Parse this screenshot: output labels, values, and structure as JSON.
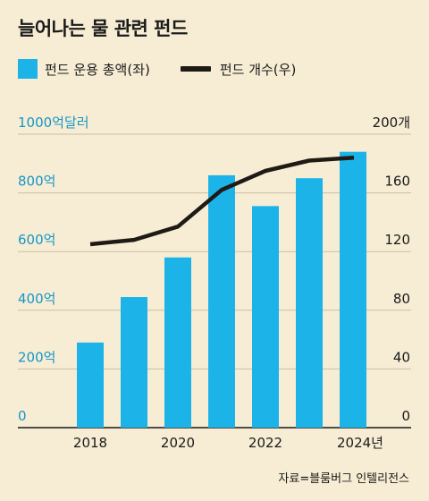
{
  "title": "늘어나는 물 관련 펀드",
  "legend": {
    "bar_label": "펀드 운용 총액(좌)",
    "line_label": "펀드 개수(우)"
  },
  "source": "자료=블룸버그 인텔리전스",
  "colors": {
    "bar": "#1cb4e8",
    "line": "#1e1a16",
    "left_axis": "#1596c8",
    "background": "#f7edd4"
  },
  "chart_data": {
    "type": "bar+line",
    "categories": [
      "2018",
      "2019",
      "2020",
      "2021",
      "2022",
      "2023",
      "2024"
    ],
    "x_tick_labels": [
      "2018",
      "2020",
      "2022",
      "2024년"
    ],
    "x_tick_categories": [
      "2018",
      "2020",
      "2022",
      "2024"
    ],
    "left_axis": {
      "ylim": [
        0,
        1000
      ],
      "ticks": [
        0,
        200,
        400,
        600,
        800,
        1000
      ],
      "tick_labels": [
        "0",
        "200억",
        "400억",
        "600억",
        "800억",
        "1000억달러"
      ]
    },
    "right_axis": {
      "ylim": [
        0,
        200
      ],
      "ticks": [
        0,
        40,
        80,
        120,
        160,
        200
      ],
      "tick_labels": [
        "0",
        "40",
        "80",
        "120",
        "160",
        "200개"
      ]
    },
    "series": [
      {
        "name": "펀드 운용 총액(좌)",
        "type": "bar",
        "axis": "left",
        "values": [
          290,
          445,
          580,
          860,
          755,
          850,
          940
        ]
      },
      {
        "name": "펀드 개수(우)",
        "type": "line",
        "axis": "right",
        "values": [
          125,
          128,
          137,
          162,
          175,
          182,
          184
        ]
      }
    ],
    "grid": true
  }
}
